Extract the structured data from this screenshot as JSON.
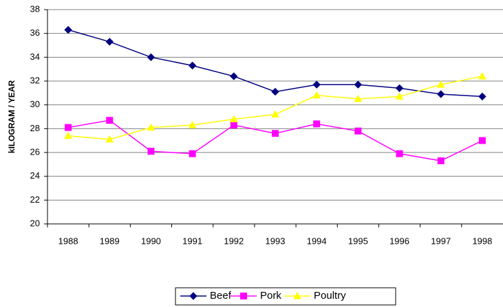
{
  "chart_data": {
    "type": "line",
    "y_label": "kILOGRAM / YEAR",
    "categories": [
      "1988",
      "1989",
      "1990",
      "1991",
      "1992",
      "1993",
      "1994",
      "1995",
      "1996",
      "1997",
      "1998"
    ],
    "series": [
      {
        "name": "Beef",
        "color": "#000080",
        "marker": "diamond",
        "values": [
          36.3,
          35.3,
          34.0,
          33.3,
          32.4,
          31.1,
          31.7,
          31.7,
          31.4,
          30.9,
          30.7
        ]
      },
      {
        "name": "Pork",
        "color": "#ff00ff",
        "marker": "square",
        "values": [
          28.1,
          28.7,
          26.1,
          25.9,
          28.3,
          27.6,
          28.4,
          27.8,
          25.9,
          25.3,
          27.0
        ]
      },
      {
        "name": "Poultry",
        "color": "#ffff00",
        "marker": "triangle",
        "values": [
          27.4,
          27.1,
          28.1,
          28.3,
          28.8,
          29.2,
          30.8,
          30.5,
          30.7,
          31.7,
          32.4
        ]
      }
    ],
    "ylim": [
      20,
      38
    ],
    "yticks": [
      20,
      22,
      24,
      26,
      28,
      30,
      32,
      34,
      36,
      38
    ],
    "grid": true,
    "legend": "bottom"
  }
}
